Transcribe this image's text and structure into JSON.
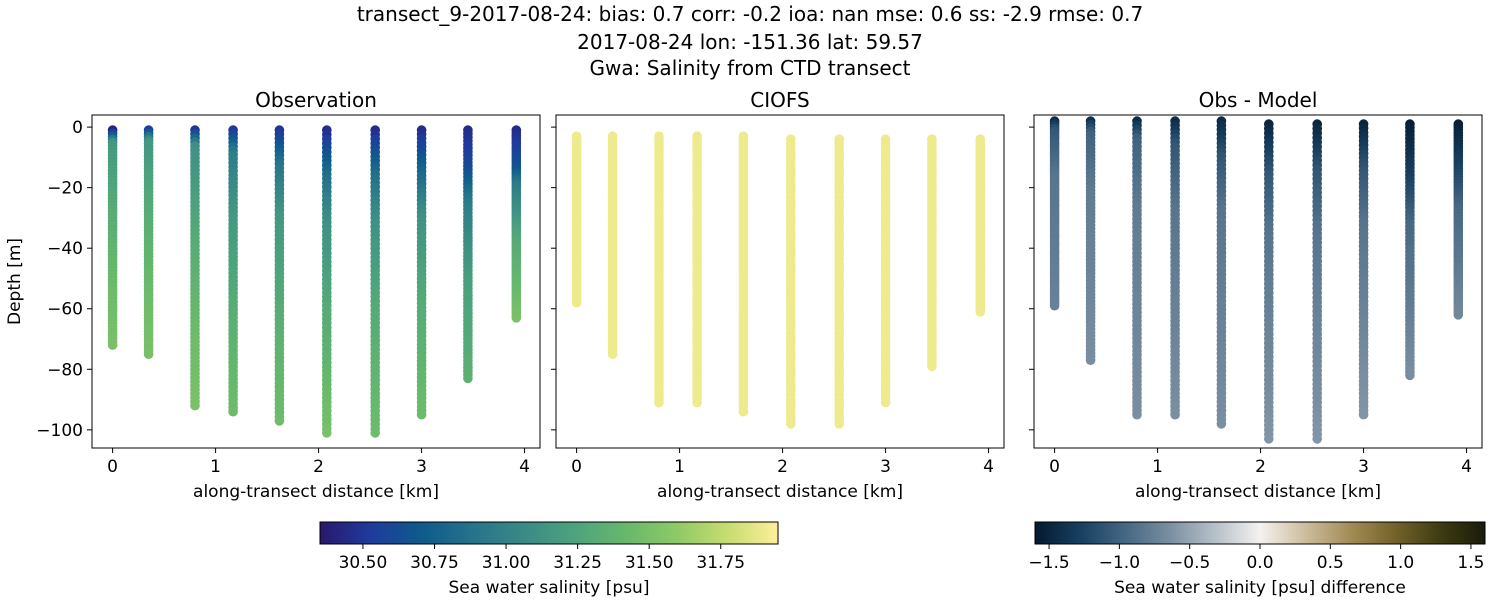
{
  "figure": {
    "title_lines": [
      "transect_9-2017-08-24: bias: 0.7  corr: -0.2  ioa: nan  mse: 0.6  ss: -2.9  rmse: 0.7",
      "2017-08-24 lon: -151.36 lat: 59.57",
      "Gwa: Salinity from CTD transect"
    ]
  },
  "chart_data": [
    {
      "type": "scatter",
      "title": "Observation",
      "xlabel": "along-transect distance [km]",
      "ylabel": "Depth [m]",
      "xlim": [
        -0.2,
        4.15
      ],
      "ylim": [
        -106,
        4
      ],
      "xticks": [
        0,
        1,
        2,
        3,
        4
      ],
      "yticks": [
        0,
        -20,
        -40,
        -60,
        -80,
        -100
      ],
      "grid": false,
      "colormap": "haline",
      "casts": [
        {
          "x": 0.0,
          "top": -1,
          "bottom": -72,
          "profile": [
            [
              0,
              30.4
            ],
            [
              0.03,
              30.75
            ],
            [
              0.06,
              31.15
            ],
            [
              0.35,
              31.3
            ],
            [
              0.75,
              31.45
            ],
            [
              1,
              31.5
            ]
          ]
        },
        {
          "x": 0.35,
          "top": -1,
          "bottom": -75,
          "profile": [
            [
              0,
              30.55
            ],
            [
              0.05,
              31.15
            ],
            [
              0.35,
              31.3
            ],
            [
              0.75,
              31.45
            ],
            [
              1,
              31.5
            ]
          ]
        },
        {
          "x": 0.8,
          "top": -1,
          "bottom": -92,
          "profile": [
            [
              0,
              30.5
            ],
            [
              0.06,
              31.1
            ],
            [
              0.4,
              31.3
            ],
            [
              0.75,
              31.45
            ],
            [
              1,
              31.5
            ]
          ]
        },
        {
          "x": 1.17,
          "top": -1,
          "bottom": -94,
          "profile": [
            [
              0,
              30.5
            ],
            [
              0.08,
              30.95
            ],
            [
              0.3,
              31.15
            ],
            [
              0.7,
              31.35
            ],
            [
              1,
              31.45
            ]
          ]
        },
        {
          "x": 1.62,
          "top": -1,
          "bottom": -97,
          "profile": [
            [
              0,
              30.5
            ],
            [
              0.12,
              30.9
            ],
            [
              0.3,
              31.15
            ],
            [
              0.7,
              31.35
            ],
            [
              1,
              31.45
            ]
          ]
        },
        {
          "x": 2.08,
          "top": -1,
          "bottom": -101,
          "profile": [
            [
              0,
              30.45
            ],
            [
              0.15,
              30.85
            ],
            [
              0.3,
              31.1
            ],
            [
              0.6,
              31.3
            ],
            [
              1,
              31.5
            ]
          ]
        },
        {
          "x": 2.55,
          "top": -1,
          "bottom": -101,
          "profile": [
            [
              0,
              30.45
            ],
            [
              0.15,
              30.85
            ],
            [
              0.3,
              31.1
            ],
            [
              0.6,
              31.3
            ],
            [
              1,
              31.45
            ]
          ]
        },
        {
          "x": 3.0,
          "top": -1,
          "bottom": -95,
          "profile": [
            [
              0,
              30.45
            ],
            [
              0.15,
              30.8
            ],
            [
              0.3,
              31.1
            ],
            [
              0.6,
              31.3
            ],
            [
              1,
              31.45
            ]
          ]
        },
        {
          "x": 3.45,
          "top": -1,
          "bottom": -83,
          "profile": [
            [
              0,
              30.45
            ],
            [
              0.15,
              30.6
            ],
            [
              0.3,
              30.95
            ],
            [
              0.6,
              31.2
            ],
            [
              1,
              31.35
            ]
          ]
        },
        {
          "x": 3.92,
          "top": -1,
          "bottom": -63,
          "profile": [
            [
              0,
              30.45
            ],
            [
              0.2,
              30.65
            ],
            [
              0.3,
              30.95
            ],
            [
              0.6,
              31.3
            ],
            [
              1,
              31.5
            ]
          ]
        }
      ]
    },
    {
      "type": "scatter",
      "title": "CIOFS",
      "xlabel": "along-transect distance [km]",
      "ylabel": "",
      "xlim": [
        -0.2,
        4.15
      ],
      "ylim": [
        -106,
        4
      ],
      "xticks": [
        0,
        1,
        2,
        3,
        4
      ],
      "yticks": [
        0,
        -20,
        -40,
        -60,
        -80,
        -100
      ],
      "grid": false,
      "colormap": "haline",
      "casts": [
        {
          "x": 0.0,
          "top": -3,
          "bottom": -58,
          "profile": [
            [
              0,
              31.9
            ],
            [
              1,
              31.9
            ]
          ]
        },
        {
          "x": 0.35,
          "top": -3,
          "bottom": -75,
          "profile": [
            [
              0,
              31.9
            ],
            [
              1,
              31.9
            ]
          ]
        },
        {
          "x": 0.8,
          "top": -3,
          "bottom": -91,
          "profile": [
            [
              0,
              31.9
            ],
            [
              1,
              31.9
            ]
          ]
        },
        {
          "x": 1.17,
          "top": -3,
          "bottom": -91,
          "profile": [
            [
              0,
              31.9
            ],
            [
              1,
              31.9
            ]
          ]
        },
        {
          "x": 1.62,
          "top": -3,
          "bottom": -94,
          "profile": [
            [
              0,
              31.9
            ],
            [
              1,
              31.9
            ]
          ]
        },
        {
          "x": 2.08,
          "top": -4,
          "bottom": -98,
          "profile": [
            [
              0,
              31.9
            ],
            [
              1,
              31.9
            ]
          ]
        },
        {
          "x": 2.55,
          "top": -4,
          "bottom": -98,
          "profile": [
            [
              0,
              31.9
            ],
            [
              1,
              31.9
            ]
          ]
        },
        {
          "x": 3.0,
          "top": -4,
          "bottom": -91,
          "profile": [
            [
              0,
              31.9
            ],
            [
              1,
              31.9
            ]
          ]
        },
        {
          "x": 3.45,
          "top": -4,
          "bottom": -79,
          "profile": [
            [
              0,
              31.9
            ],
            [
              1,
              31.9
            ]
          ]
        },
        {
          "x": 3.92,
          "top": -4,
          "bottom": -61,
          "profile": [
            [
              0,
              31.9
            ],
            [
              1,
              31.9
            ]
          ]
        }
      ]
    },
    {
      "type": "scatter",
      "title": "Obs - Model",
      "xlabel": "along-transect distance [km]",
      "ylabel": "",
      "xlim": [
        -0.2,
        4.15
      ],
      "ylim": [
        -106,
        4
      ],
      "xticks": [
        0,
        1,
        2,
        3,
        4
      ],
      "yticks": [
        0,
        -20,
        -40,
        -60,
        -80,
        -100
      ],
      "grid": false,
      "colormap": "diff",
      "casts": [
        {
          "x": 0.0,
          "top": 2,
          "bottom": -59,
          "profile": [
            [
              0,
              -1.45
            ],
            [
              0.05,
              -1.1
            ],
            [
              0.3,
              -0.85
            ],
            [
              1,
              -0.75
            ]
          ]
        },
        {
          "x": 0.35,
          "top": 2,
          "bottom": -77,
          "profile": [
            [
              0,
              -1.4
            ],
            [
              0.05,
              -1.0
            ],
            [
              0.3,
              -0.8
            ],
            [
              1,
              -0.65
            ]
          ]
        },
        {
          "x": 0.8,
          "top": 2,
          "bottom": -95,
          "profile": [
            [
              0,
              -1.45
            ],
            [
              0.06,
              -1.0
            ],
            [
              0.3,
              -0.8
            ],
            [
              1,
              -0.65
            ]
          ]
        },
        {
          "x": 1.17,
          "top": 2,
          "bottom": -95,
          "profile": [
            [
              0,
              -1.45
            ],
            [
              0.08,
              -1.1
            ],
            [
              0.3,
              -0.85
            ],
            [
              1,
              -0.65
            ]
          ]
        },
        {
          "x": 1.62,
          "top": 2,
          "bottom": -98,
          "profile": [
            [
              0,
              -1.45
            ],
            [
              0.12,
              -1.1
            ],
            [
              0.3,
              -0.85
            ],
            [
              1,
              -0.65
            ]
          ]
        },
        {
          "x": 2.08,
          "top": 1,
          "bottom": -103,
          "profile": [
            [
              0,
              -1.5
            ],
            [
              0.15,
              -1.1
            ],
            [
              0.35,
              -0.85
            ],
            [
              1,
              -0.6
            ]
          ]
        },
        {
          "x": 2.55,
          "top": 1,
          "bottom": -103,
          "profile": [
            [
              0,
              -1.5
            ],
            [
              0.15,
              -1.1
            ],
            [
              0.35,
              -0.85
            ],
            [
              1,
              -0.6
            ]
          ]
        },
        {
          "x": 3.0,
          "top": 1,
          "bottom": -95,
          "profile": [
            [
              0,
              -1.5
            ],
            [
              0.15,
              -1.1
            ],
            [
              0.35,
              -0.85
            ],
            [
              1,
              -0.6
            ]
          ]
        },
        {
          "x": 3.45,
          "top": 1,
          "bottom": -82,
          "profile": [
            [
              0,
              -1.55
            ],
            [
              0.2,
              -1.3
            ],
            [
              0.4,
              -0.95
            ],
            [
              1,
              -0.65
            ]
          ]
        },
        {
          "x": 3.92,
          "top": 1,
          "bottom": -62,
          "profile": [
            [
              0,
              -1.55
            ],
            [
              0.2,
              -1.3
            ],
            [
              0.45,
              -0.95
            ],
            [
              1,
              -0.7
            ]
          ]
        }
      ]
    }
  ],
  "colorbars": [
    {
      "label": "Sea water salinity [psu]",
      "min": 30.35,
      "max": 31.95,
      "ticks": [
        30.5,
        30.75,
        31.0,
        31.25,
        31.5,
        31.75
      ],
      "tick_labels": [
        "30.50",
        "30.75",
        "31.00",
        "31.25",
        "31.50",
        "31.75"
      ],
      "colormap": "haline"
    },
    {
      "label": "Sea water salinity [psu] difference",
      "min": -1.6,
      "max": 1.6,
      "ticks": [
        -1.5,
        -1.0,
        -0.5,
        0.0,
        0.5,
        1.0,
        1.5
      ],
      "tick_labels": [
        "−1.5",
        "−1.0",
        "−0.5",
        "0.0",
        "0.5",
        "1.0",
        "1.5"
      ],
      "colormap": "diff"
    }
  ],
  "colormaps": {
    "haline": [
      "#2a186c",
      "#1f3b9d",
      "#0e5b8c",
      "#26738a",
      "#3a8a86",
      "#4da37d",
      "#66b86c",
      "#8ec966",
      "#c7dc70",
      "#fdef9a"
    ],
    "diff": [
      "#041a2f",
      "#183f60",
      "#456782",
      "#7b8fa1",
      "#b6c0c8",
      "#f4f2ef",
      "#cdbd9e",
      "#a38c57",
      "#74632a",
      "#3e3c12",
      "#191b0a"
    ]
  }
}
